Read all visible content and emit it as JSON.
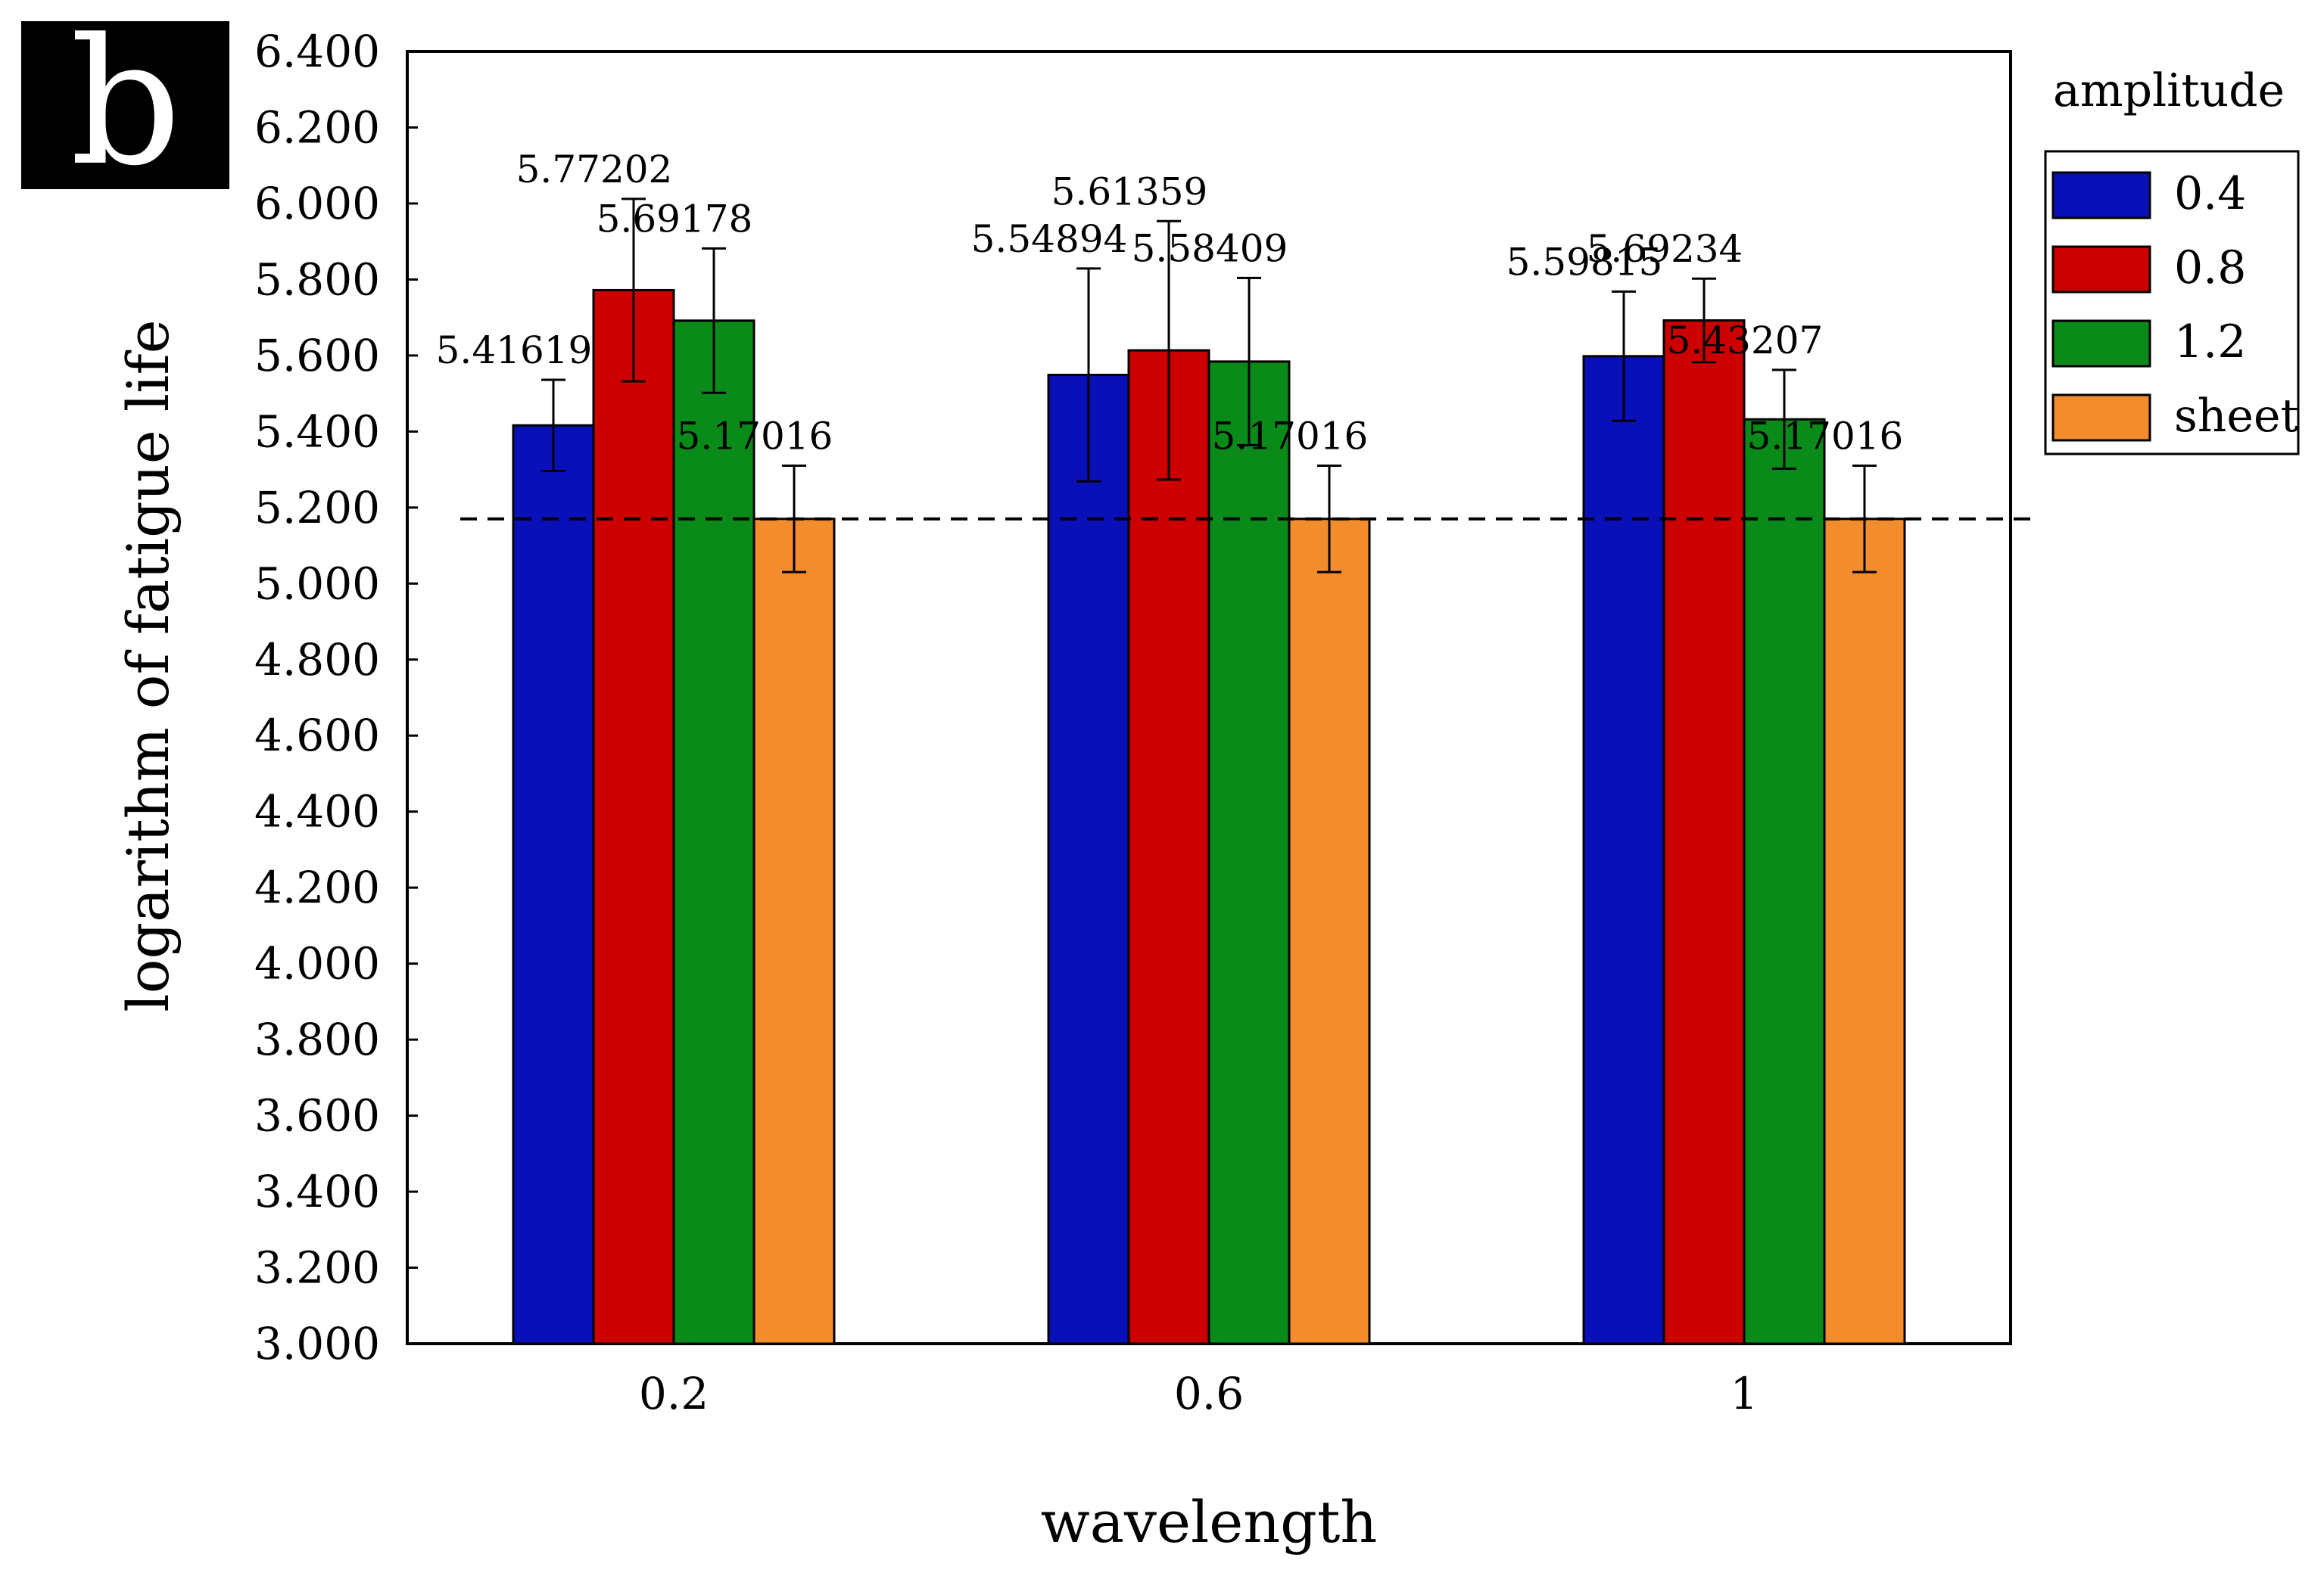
{
  "panel_label": "b",
  "chart_data": {
    "type": "bar",
    "title": "",
    "xlabel": "wavelength",
    "ylabel": "logarithm of fatigue life",
    "categories": [
      "0.2",
      "0.6",
      "1"
    ],
    "ylim": [
      3.0,
      6.4
    ],
    "yticks": [
      "3.000",
      "3.200",
      "3.400",
      "3.600",
      "3.800",
      "4.000",
      "4.200",
      "4.400",
      "4.600",
      "4.800",
      "5.000",
      "5.200",
      "5.400",
      "5.600",
      "5.800",
      "6.000",
      "6.200",
      "6.400"
    ],
    "legend": {
      "title": "amplitude",
      "placement": "right"
    },
    "series": [
      {
        "name": "0.4",
        "color": "#0a10b8",
        "values": [
          5.41619,
          5.54894,
          5.59815
        ],
        "labels": [
          "5.41619",
          "5.54894",
          "5.59815"
        ],
        "err": [
          0.12,
          0.28,
          0.17
        ]
      },
      {
        "name": "0.8",
        "color": "#cc0000",
        "values": [
          5.77202,
          5.61359,
          5.69234
        ],
        "labels": [
          "5.77202",
          "5.61359",
          "5.69234"
        ],
        "err": [
          0.24,
          0.34,
          0.11
        ]
      },
      {
        "name": "1.2",
        "color": "#0a8a18",
        "values": [
          5.69178,
          5.58409,
          5.43207
        ],
        "labels": [
          "5.69178",
          "5.58409",
          "5.43207"
        ],
        "err": [
          0.19,
          0.22,
          0.13
        ]
      },
      {
        "name": "sheet",
        "color": "#f28c2d",
        "values": [
          5.17016,
          5.17016,
          5.17016
        ],
        "labels": [
          "5.17016",
          "5.17016",
          "5.17016"
        ],
        "err": [
          0.14,
          0.14,
          0.14
        ]
      }
    ],
    "reference_line": {
      "value": 5.17016,
      "style": "dashed"
    },
    "grid": false
  }
}
